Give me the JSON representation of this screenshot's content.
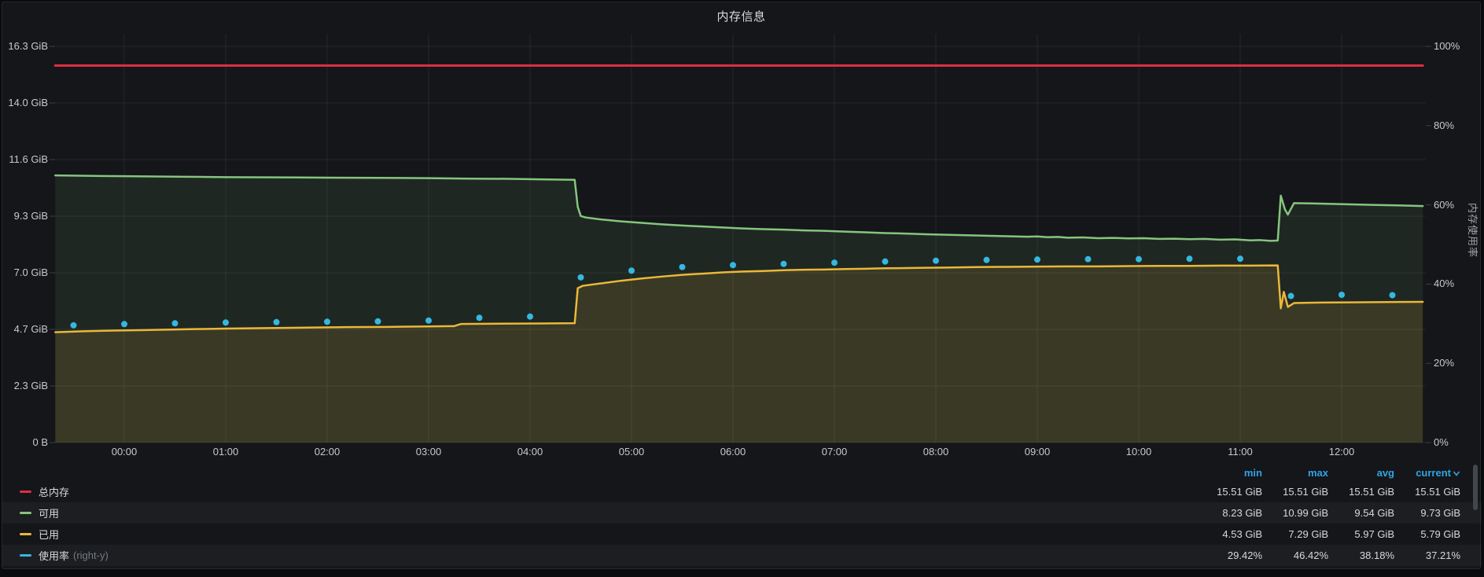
{
  "panel": {
    "title": "内存信息"
  },
  "colors": {
    "background": "#141619",
    "grid": "rgba(255,255,255,0.07)",
    "axis_text": "#c8c9cb",
    "header_blue": "#33a2e5",
    "total_red": "#e02f44",
    "available_green": "#85c57e",
    "used_yellow": "#eab839",
    "usage_cyan": "#35b8e0"
  },
  "legend": {
    "columns": [
      "min",
      "max",
      "avg",
      "current"
    ],
    "sorted_column": "current",
    "rows": [
      {
        "label": "总内存",
        "suffix": "",
        "color": "#e02f44",
        "striped": false,
        "min": "15.51 GiB",
        "max": "15.51 GiB",
        "avg": "15.51 GiB",
        "current": "15.51 GiB"
      },
      {
        "label": "可用",
        "suffix": "",
        "color": "#85c57e",
        "striped": true,
        "min": "8.23 GiB",
        "max": "10.99 GiB",
        "avg": "9.54 GiB",
        "current": "9.73 GiB"
      },
      {
        "label": "已用",
        "suffix": "",
        "color": "#eab839",
        "striped": false,
        "min": "4.53 GiB",
        "max": "7.29 GiB",
        "avg": "5.97 GiB",
        "current": "5.79 GiB"
      },
      {
        "label": "使用率",
        "suffix": "(right-y)",
        "color": "#35b8e0",
        "striped": true,
        "min": "29.42%",
        "max": "46.42%",
        "avg": "38.18%",
        "current": "37.21%"
      }
    ]
  },
  "chart_data": {
    "type": "line",
    "title": "内存信息",
    "x_axis": {
      "ticks": [
        "00:00",
        "01:00",
        "02:00",
        "03:00",
        "04:00",
        "05:00",
        "06:00",
        "07:00",
        "08:00",
        "09:00",
        "10:00",
        "11:00",
        "12:00"
      ],
      "range_hours": [
        -0.68,
        12.83
      ]
    },
    "y_left": {
      "ticks": [
        "0 B",
        "2.3 GiB",
        "4.7 GiB",
        "7.0 GiB",
        "9.3 GiB",
        "11.6 GiB",
        "14.0 GiB",
        "16.3 GiB"
      ],
      "max_gib": 16.3
    },
    "y_right": {
      "ticks": [
        "0%",
        "20%",
        "40%",
        "60%",
        "80%",
        "100%"
      ],
      "max_pct": 100,
      "label": "内存使用率"
    },
    "series": [
      {
        "name": "总内存",
        "axis": "left",
        "draw": "line",
        "color": "#e02f44",
        "width": 3,
        "fill_opacity": 0,
        "data": [
          [
            -0.68,
            15.51
          ],
          [
            12.8,
            15.51
          ]
        ]
      },
      {
        "name": "可用",
        "axis": "left",
        "draw": "line",
        "color": "#85c57e",
        "width": 2.5,
        "fill_opacity": 0.1,
        "data": [
          [
            -0.68,
            10.99
          ],
          [
            -0.3,
            10.97
          ],
          [
            0,
            10.96
          ],
          [
            0.5,
            10.94
          ],
          [
            1,
            10.92
          ],
          [
            1.5,
            10.91
          ],
          [
            2,
            10.9
          ],
          [
            2.5,
            10.89
          ],
          [
            3,
            10.88
          ],
          [
            3.4,
            10.86
          ],
          [
            3.8,
            10.85
          ],
          [
            4.1,
            10.83
          ],
          [
            4.3,
            10.82
          ],
          [
            4.44,
            10.81
          ],
          [
            4.47,
            9.7
          ],
          [
            4.5,
            9.32
          ],
          [
            4.55,
            9.26
          ],
          [
            4.7,
            9.18
          ],
          [
            4.9,
            9.1
          ],
          [
            5.1,
            9.04
          ],
          [
            5.3,
            8.98
          ],
          [
            5.5,
            8.93
          ],
          [
            5.7,
            8.89
          ],
          [
            5.9,
            8.85
          ],
          [
            6.1,
            8.81
          ],
          [
            6.3,
            8.78
          ],
          [
            6.5,
            8.76
          ],
          [
            6.7,
            8.73
          ],
          [
            6.9,
            8.71
          ],
          [
            7.1,
            8.68
          ],
          [
            7.3,
            8.65
          ],
          [
            7.5,
            8.62
          ],
          [
            7.7,
            8.6
          ],
          [
            7.9,
            8.57
          ],
          [
            8.1,
            8.55
          ],
          [
            8.3,
            8.53
          ],
          [
            8.5,
            8.51
          ],
          [
            8.7,
            8.49
          ],
          [
            8.9,
            8.47
          ],
          [
            9.0,
            8.48
          ],
          [
            9.1,
            8.45
          ],
          [
            9.2,
            8.46
          ],
          [
            9.3,
            8.43
          ],
          [
            9.45,
            8.44
          ],
          [
            9.6,
            8.41
          ],
          [
            9.75,
            8.42
          ],
          [
            9.9,
            8.4
          ],
          [
            10.05,
            8.41
          ],
          [
            10.2,
            8.38
          ],
          [
            10.35,
            8.39
          ],
          [
            10.5,
            8.37
          ],
          [
            10.65,
            8.38
          ],
          [
            10.8,
            8.35
          ],
          [
            10.95,
            8.36
          ],
          [
            11.1,
            8.32
          ],
          [
            11.2,
            8.33
          ],
          [
            11.3,
            8.3
          ],
          [
            11.37,
            8.31
          ],
          [
            11.4,
            10.16
          ],
          [
            11.44,
            9.6
          ],
          [
            11.47,
            9.38
          ],
          [
            11.53,
            9.85
          ],
          [
            11.7,
            9.84
          ],
          [
            11.9,
            9.82
          ],
          [
            12.1,
            9.8
          ],
          [
            12.3,
            9.78
          ],
          [
            12.55,
            9.76
          ],
          [
            12.8,
            9.73
          ]
        ]
      },
      {
        "name": "已用",
        "axis": "left",
        "draw": "line",
        "color": "#eab839",
        "width": 2.5,
        "fill_opacity": 0.13,
        "data": [
          [
            -0.68,
            4.54
          ],
          [
            -0.4,
            4.58
          ],
          [
            -0.1,
            4.61
          ],
          [
            0.2,
            4.63
          ],
          [
            0.6,
            4.66
          ],
          [
            1.0,
            4.69
          ],
          [
            1.4,
            4.71
          ],
          [
            1.8,
            4.73
          ],
          [
            2.2,
            4.75
          ],
          [
            2.6,
            4.76
          ],
          [
            3.0,
            4.78
          ],
          [
            3.25,
            4.79
          ],
          [
            3.32,
            4.88
          ],
          [
            3.7,
            4.89
          ],
          [
            4.1,
            4.9
          ],
          [
            4.44,
            4.91
          ],
          [
            4.47,
            6.35
          ],
          [
            4.52,
            6.45
          ],
          [
            4.7,
            6.55
          ],
          [
            4.9,
            6.66
          ],
          [
            5.1,
            6.75
          ],
          [
            5.3,
            6.83
          ],
          [
            5.5,
            6.9
          ],
          [
            5.7,
            6.95
          ],
          [
            5.9,
            7.0
          ],
          [
            6.1,
            7.04
          ],
          [
            6.3,
            7.06
          ],
          [
            6.5,
            7.09
          ],
          [
            6.7,
            7.11
          ],
          [
            6.9,
            7.12
          ],
          [
            7.1,
            7.14
          ],
          [
            7.3,
            7.15
          ],
          [
            7.5,
            7.17
          ],
          [
            7.7,
            7.18
          ],
          [
            7.9,
            7.19
          ],
          [
            8.1,
            7.2
          ],
          [
            8.4,
            7.22
          ],
          [
            8.7,
            7.23
          ],
          [
            9.0,
            7.24
          ],
          [
            9.3,
            7.25
          ],
          [
            9.6,
            7.25
          ],
          [
            9.9,
            7.26
          ],
          [
            10.2,
            7.27
          ],
          [
            10.5,
            7.27
          ],
          [
            10.8,
            7.28
          ],
          [
            11.1,
            7.28
          ],
          [
            11.37,
            7.29
          ],
          [
            11.4,
            5.52
          ],
          [
            11.43,
            6.2
          ],
          [
            11.47,
            5.58
          ],
          [
            11.53,
            5.74
          ],
          [
            11.8,
            5.76
          ],
          [
            12.1,
            5.77
          ],
          [
            12.45,
            5.78
          ],
          [
            12.8,
            5.79
          ]
        ]
      },
      {
        "name": "使用率",
        "axis": "right",
        "draw": "points",
        "color": "#35b8e0",
        "width": 0,
        "fill_opacity": 0,
        "data": [
          [
            -0.5,
            29.6
          ],
          [
            0,
            29.9
          ],
          [
            0.5,
            30.1
          ],
          [
            1,
            30.3
          ],
          [
            1.5,
            30.4
          ],
          [
            2,
            30.5
          ],
          [
            2.5,
            30.6
          ],
          [
            3,
            30.8
          ],
          [
            3.5,
            31.5
          ],
          [
            4,
            31.8
          ],
          [
            4.5,
            41.7
          ],
          [
            5,
            43.4
          ],
          [
            5.5,
            44.3
          ],
          [
            6,
            44.8
          ],
          [
            6.5,
            45.1
          ],
          [
            7,
            45.4
          ],
          [
            7.5,
            45.7
          ],
          [
            8,
            45.9
          ],
          [
            8.5,
            46.1
          ],
          [
            9,
            46.2
          ],
          [
            9.5,
            46.3
          ],
          [
            10,
            46.3
          ],
          [
            10.5,
            46.4
          ],
          [
            11,
            46.4
          ],
          [
            11.5,
            37.0
          ],
          [
            12,
            37.3
          ],
          [
            12.5,
            37.2
          ]
        ]
      }
    ]
  }
}
